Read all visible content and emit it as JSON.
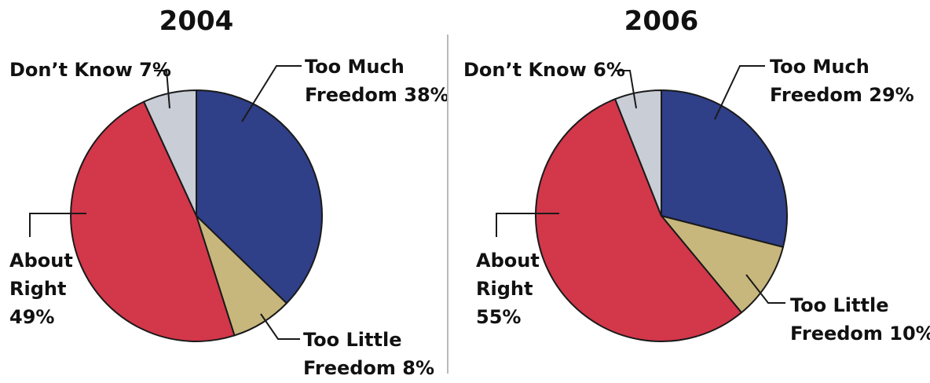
{
  "colors": {
    "too_much": "#2f3f88",
    "too_little": "#c8b77c",
    "about_right": "#d3374a",
    "dont_know": "#c8cdd6",
    "outline": "#1a1a1a",
    "divider": "#b9b9b9"
  },
  "chart_data": [
    {
      "type": "pie",
      "title": "2004",
      "slices": [
        {
          "key": "too_much",
          "label_lines": [
            "Too Much",
            "Freedom 38%"
          ],
          "value": 38
        },
        {
          "key": "too_little",
          "label_lines": [
            "Too Little",
            "Freedom 8%"
          ],
          "value": 8
        },
        {
          "key": "about_right",
          "label_lines": [
            "About",
            "Right",
            "49%"
          ],
          "value": 49
        },
        {
          "key": "dont_know",
          "label_lines": [
            "Don’t Know 7%"
          ],
          "value": 7
        }
      ]
    },
    {
      "type": "pie",
      "title": "2006",
      "slices": [
        {
          "key": "too_much",
          "label_lines": [
            "Too Much",
            "Freedom 29%"
          ],
          "value": 29
        },
        {
          "key": "too_little",
          "label_lines": [
            "Too Little",
            "Freedom 10%"
          ],
          "value": 10
        },
        {
          "key": "about_right",
          "label_lines": [
            "About",
            "Right",
            "55%"
          ],
          "value": 55
        },
        {
          "key": "dont_know",
          "label_lines": [
            "Don’t Know 6%"
          ],
          "value": 6
        }
      ]
    }
  ]
}
